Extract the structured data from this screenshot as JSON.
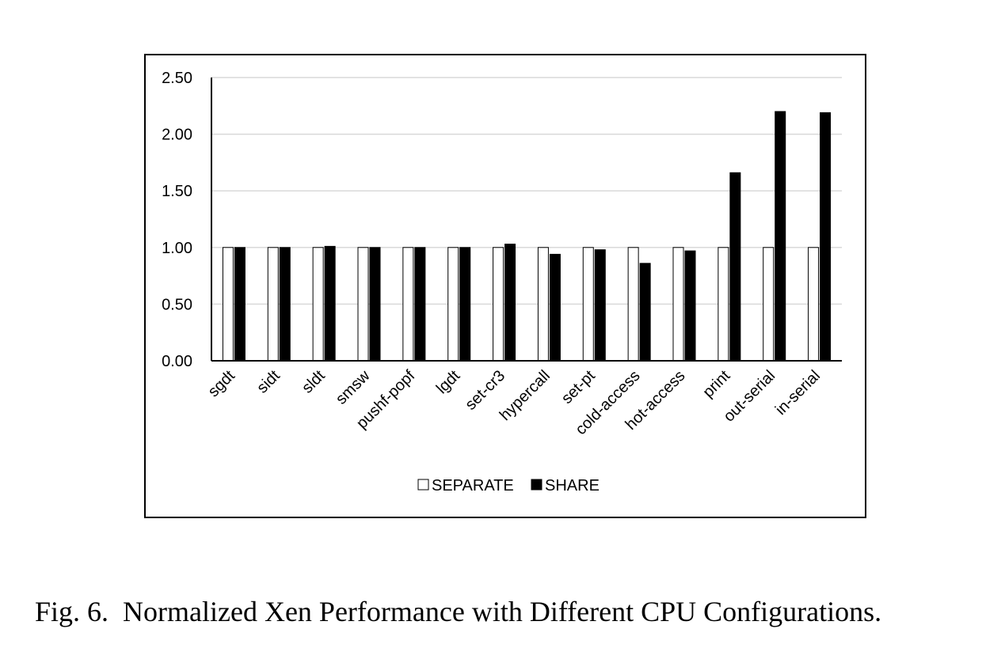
{
  "caption": {
    "label": "Fig. 6.",
    "text": "Normalized Xen Performance with Different CPU Configurations."
  },
  "colors": {
    "separate_fill": "#ffffff",
    "share_fill": "#000000",
    "gridline": "#d9d9d9",
    "frame": "#000000"
  },
  "chart_data": {
    "type": "bar",
    "categories": [
      "sgdt",
      "sidt",
      "sldt",
      "smsw",
      "pushf-popf",
      "lgdt",
      "set-cr3",
      "hypercall",
      "set-pt",
      "cold-access",
      "hot-access",
      "print",
      "out-serial",
      "in-serial"
    ],
    "series": [
      {
        "name": "SEPARATE",
        "values": [
          1.0,
          1.0,
          1.0,
          1.0,
          1.0,
          1.0,
          1.0,
          1.0,
          1.0,
          1.0,
          1.0,
          1.0,
          1.0,
          1.0
        ]
      },
      {
        "name": "SHARE",
        "values": [
          1.0,
          1.0,
          1.01,
          1.0,
          1.0,
          1.0,
          1.03,
          0.94,
          0.98,
          0.86,
          0.97,
          1.66,
          2.2,
          2.19
        ]
      }
    ],
    "yticks": [
      "0.00",
      "0.50",
      "1.00",
      "1.50",
      "2.00",
      "2.50"
    ],
    "ylim": [
      0,
      2.5
    ],
    "grid": true,
    "legend_position": "bottom"
  }
}
